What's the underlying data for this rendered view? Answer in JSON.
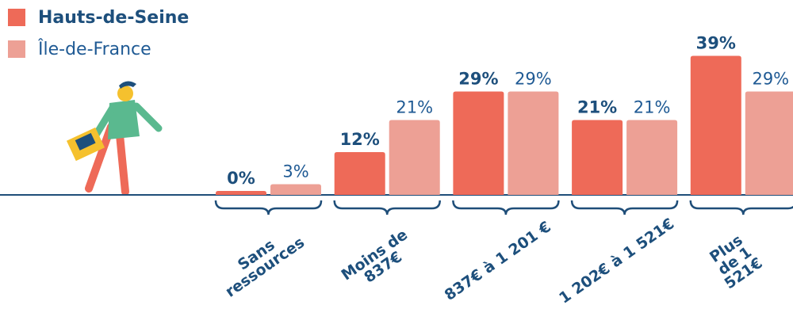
{
  "chart_data": {
    "type": "bar",
    "categories": [
      "Sans\nressources",
      "Moins de\n837€",
      "837€ à 1 201 €",
      "1 202€ à 1 521€",
      "Plus de 1 521€"
    ],
    "series": [
      {
        "name": "Hauts-de-Seine",
        "color": "#ee6a58",
        "values": [
          0,
          12,
          29,
          21,
          39
        ],
        "value_labels": [
          "0%",
          "12%",
          "29%",
          "21%",
          "39%"
        ]
      },
      {
        "name": "Île-de-France",
        "color": "#eda095",
        "values": [
          3,
          21,
          29,
          21,
          29
        ],
        "value_labels": [
          "3%",
          "21%",
          "29%",
          "21%",
          "29%"
        ]
      }
    ]
  }
}
